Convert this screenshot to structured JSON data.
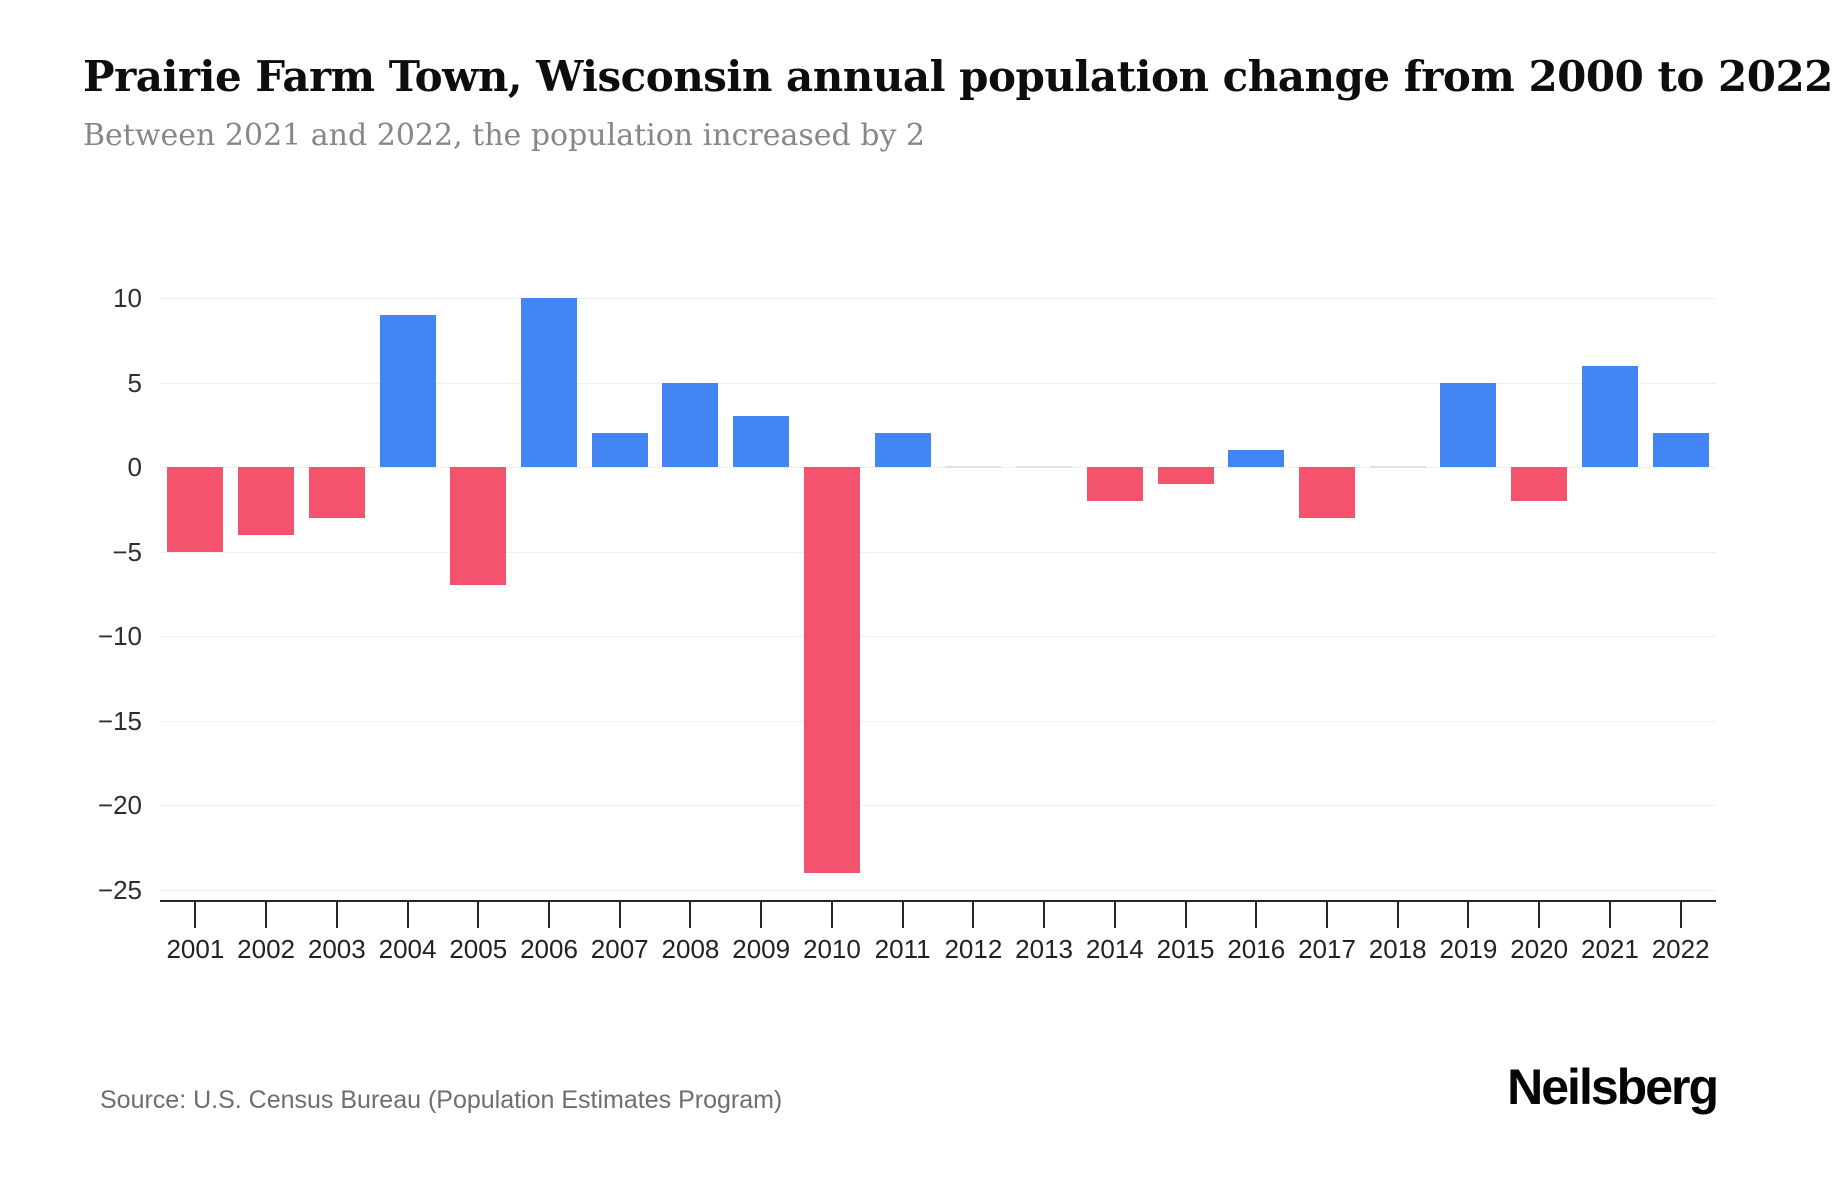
{
  "header": {
    "title": "Prairie Farm Town, Wisconsin annual population change from 2000 to 2022",
    "subtitle": "Between 2021 and 2022, the population increased by 2"
  },
  "footer": {
    "source": "Source: U.S. Census Bureau (Population Estimates Program)",
    "brand": "Neilsberg"
  },
  "colors": {
    "positive": "#4385F4",
    "negative": "#F4536D",
    "zero_bar": "#e1e1e1",
    "gridline": "#f0f0f0",
    "axis": "#262626"
  },
  "chart_data": {
    "type": "bar",
    "title": "Prairie Farm Town, Wisconsin annual population change from 2000 to 2022",
    "subtitle": "Between 2021 and 2022, the population increased by 2",
    "categories": [
      "2001",
      "2002",
      "2003",
      "2004",
      "2005",
      "2006",
      "2007",
      "2008",
      "2009",
      "2010",
      "2011",
      "2012",
      "2013",
      "2014",
      "2015",
      "2016",
      "2017",
      "2018",
      "2019",
      "2020",
      "2021",
      "2022"
    ],
    "values": [
      -5,
      -4,
      -3,
      9,
      -7,
      10,
      2,
      5,
      3,
      -24,
      2,
      0,
      0,
      -2,
      -1,
      1,
      -3,
      0,
      5,
      -2,
      6,
      2
    ],
    "xlabel": "",
    "ylabel": "",
    "ylim": [
      -25,
      10
    ],
    "yticks": [
      10,
      5,
      0,
      -5,
      -10,
      -15,
      -20,
      -25
    ],
    "ytick_labels": [
      "10",
      "5",
      "0",
      "−5",
      "−10",
      "−15",
      "−20",
      "−25"
    ],
    "grid": "horizontal",
    "legend": "none",
    "positive_color": "#4385F4",
    "negative_color": "#F4536D"
  }
}
